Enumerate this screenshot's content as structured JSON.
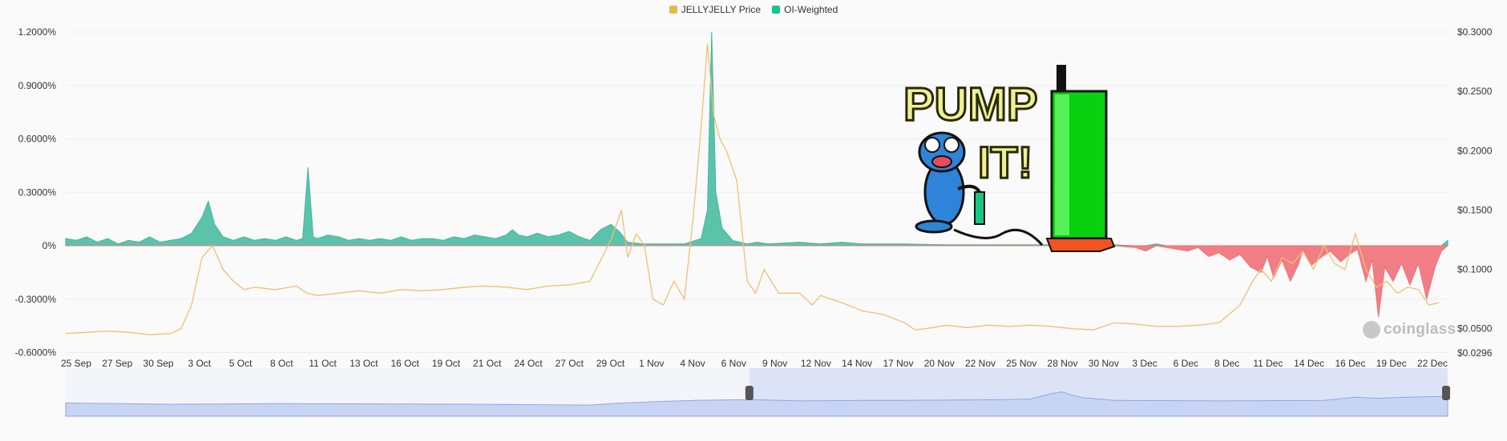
{
  "legend": [
    {
      "label": "JELLYJELLY Price",
      "color": "#e8b84a"
    },
    {
      "label": "OI-Weighted",
      "color": "#16c784"
    }
  ],
  "watermark": "coinglass",
  "sticker": {
    "line1": "PUMP",
    "line2": "IT!"
  },
  "chart_data": {
    "type": "area",
    "title": "",
    "left_axis": {
      "labels": [
        "1.2000%",
        "0.9000%",
        "0.6000%",
        "0.3000%",
        "0%",
        "-0.3000%",
        "-0.6000%"
      ],
      "min": -0.6,
      "max": 1.2
    },
    "right_axis": {
      "labels": [
        "$0.3000",
        "$0.2500",
        "$0.2000",
        "$0.1500",
        "$0.1000",
        "$0.0500",
        "$0.0296"
      ],
      "min": 0.0296,
      "max": 0.3
    },
    "x_labels": [
      "25 Sep",
      "27 Sep",
      "30 Sep",
      "3 Oct",
      "5 Oct",
      "8 Oct",
      "11 Oct",
      "13 Oct",
      "16 Oct",
      "19 Oct",
      "21 Oct",
      "24 Oct",
      "27 Oct",
      "29 Oct",
      "1 Nov",
      "4 Nov",
      "6 Nov",
      "9 Nov",
      "12 Nov",
      "14 Nov",
      "17 Nov",
      "20 Nov",
      "22 Nov",
      "25 Nov",
      "28 Nov",
      "30 Nov",
      "3 Dec",
      "6 Dec",
      "8 Dec",
      "11 Dec",
      "14 Dec",
      "16 Dec",
      "19 Dec",
      "22 Dec"
    ],
    "grid": true,
    "series": [
      {
        "name": "OI-Weighted",
        "axis": "left",
        "pos_color": "#3fb89c",
        "neg_color": "#f07078",
        "points": [
          [
            0,
            0.04
          ],
          [
            0.5,
            0.03
          ],
          [
            1.0,
            0.05
          ],
          [
            1.5,
            0.02
          ],
          [
            2.0,
            0.04
          ],
          [
            2.5,
            0.01
          ],
          [
            3.0,
            0.03
          ],
          [
            3.5,
            0.02
          ],
          [
            4.0,
            0.05
          ],
          [
            4.5,
            0.02
          ],
          [
            5.0,
            0.03
          ],
          [
            5.5,
            0.04
          ],
          [
            6.0,
            0.07
          ],
          [
            6.5,
            0.16
          ],
          [
            6.8,
            0.25
          ],
          [
            7.1,
            0.12
          ],
          [
            7.5,
            0.05
          ],
          [
            8.0,
            0.03
          ],
          [
            8.5,
            0.05
          ],
          [
            9.0,
            0.03
          ],
          [
            9.5,
            0.04
          ],
          [
            10.0,
            0.03
          ],
          [
            10.5,
            0.05
          ],
          [
            11.0,
            0.03
          ],
          [
            11.3,
            0.04
          ],
          [
            11.55,
            0.44
          ],
          [
            11.8,
            0.05
          ],
          [
            12.0,
            0.04
          ],
          [
            12.5,
            0.06
          ],
          [
            13.0,
            0.05
          ],
          [
            13.5,
            0.03
          ],
          [
            14.0,
            0.04
          ],
          [
            14.5,
            0.03
          ],
          [
            15.0,
            0.04
          ],
          [
            15.5,
            0.03
          ],
          [
            16.0,
            0.05
          ],
          [
            16.5,
            0.03
          ],
          [
            17.0,
            0.04
          ],
          [
            17.5,
            0.04
          ],
          [
            18.0,
            0.03
          ],
          [
            18.5,
            0.05
          ],
          [
            19.0,
            0.04
          ],
          [
            19.5,
            0.06
          ],
          [
            20.0,
            0.05
          ],
          [
            20.5,
            0.04
          ],
          [
            21.0,
            0.06
          ],
          [
            21.3,
            0.09
          ],
          [
            21.6,
            0.06
          ],
          [
            22.0,
            0.05
          ],
          [
            22.5,
            0.07
          ],
          [
            23.0,
            0.05
          ],
          [
            23.5,
            0.06
          ],
          [
            24.0,
            0.08
          ],
          [
            24.5,
            0.05
          ],
          [
            25.0,
            0.03
          ],
          [
            25.5,
            0.09
          ],
          [
            26.0,
            0.12
          ],
          [
            26.4,
            0.08
          ],
          [
            26.8,
            0.02
          ],
          [
            27.5,
            0.01
          ],
          [
            28.5,
            0.01
          ],
          [
            29.5,
            0.01
          ],
          [
            30.3,
            0.04
          ],
          [
            30.6,
            0.2
          ],
          [
            30.8,
            1.2
          ],
          [
            31.0,
            0.3
          ],
          [
            31.3,
            0.1
          ],
          [
            31.8,
            0.03
          ],
          [
            32.5,
            0.01
          ],
          [
            33.0,
            0.02
          ],
          [
            33.5,
            0.01
          ],
          [
            35.0,
            0.02
          ],
          [
            36.0,
            0.01
          ],
          [
            37.0,
            0.02
          ],
          [
            38.0,
            0.01
          ],
          [
            40.0,
            0.01
          ],
          [
            42.0,
            0.005
          ],
          [
            44.0,
            0.005
          ],
          [
            46.0,
            0.005
          ],
          [
            48.0,
            0.005
          ],
          [
            49.0,
            -0.005
          ],
          [
            50.0,
            0.005
          ],
          [
            51.0,
            -0.01
          ],
          [
            51.5,
            -0.03
          ],
          [
            52.0,
            0.01
          ],
          [
            52.5,
            -0.01
          ],
          [
            53.0,
            -0.02
          ],
          [
            53.5,
            -0.03
          ],
          [
            54.0,
            -0.01
          ],
          [
            54.5,
            -0.06
          ],
          [
            55.0,
            -0.04
          ],
          [
            55.5,
            -0.08
          ],
          [
            56.0,
            -0.05
          ],
          [
            56.5,
            -0.12
          ],
          [
            57.0,
            -0.15
          ],
          [
            57.3,
            -0.06
          ],
          [
            57.6,
            -0.18
          ],
          [
            58.0,
            -0.08
          ],
          [
            58.4,
            -0.2
          ],
          [
            58.8,
            -0.1
          ],
          [
            59.0,
            -0.02
          ],
          [
            59.4,
            -0.11
          ],
          [
            59.8,
            -0.07
          ],
          [
            60.3,
            -0.03
          ],
          [
            60.8,
            -0.09
          ],
          [
            61.2,
            -0.05
          ],
          [
            61.6,
            -0.02
          ],
          [
            62.0,
            -0.2
          ],
          [
            62.3,
            -0.08
          ],
          [
            62.6,
            -0.4
          ],
          [
            62.9,
            -0.12
          ],
          [
            63.3,
            -0.2
          ],
          [
            63.7,
            -0.1
          ],
          [
            64.1,
            -0.22
          ],
          [
            64.5,
            -0.1
          ],
          [
            64.9,
            -0.3
          ],
          [
            65.3,
            -0.12
          ],
          [
            65.6,
            -0.03
          ],
          [
            65.9,
            0.03
          ]
        ]
      },
      {
        "name": "JELLYJELLY Price",
        "axis": "right",
        "color": "#f0c070",
        "points": [
          [
            0,
            0.046
          ],
          [
            1.0,
            0.047
          ],
          [
            2.0,
            0.048
          ],
          [
            3.0,
            0.047
          ],
          [
            4.0,
            0.045
          ],
          [
            5.0,
            0.046
          ],
          [
            5.5,
            0.05
          ],
          [
            6.0,
            0.07
          ],
          [
            6.5,
            0.11
          ],
          [
            7.0,
            0.12
          ],
          [
            7.5,
            0.1
          ],
          [
            8.0,
            0.09
          ],
          [
            8.5,
            0.083
          ],
          [
            9.0,
            0.085
          ],
          [
            10.0,
            0.083
          ],
          [
            11.0,
            0.086
          ],
          [
            11.5,
            0.08
          ],
          [
            12.0,
            0.078
          ],
          [
            13.0,
            0.08
          ],
          [
            14.0,
            0.082
          ],
          [
            15.0,
            0.08
          ],
          [
            16.0,
            0.083
          ],
          [
            17.0,
            0.082
          ],
          [
            18.0,
            0.083
          ],
          [
            19.0,
            0.085
          ],
          [
            20.0,
            0.086
          ],
          [
            21.0,
            0.085
          ],
          [
            22.0,
            0.083
          ],
          [
            23.0,
            0.086
          ],
          [
            24.0,
            0.087
          ],
          [
            25.0,
            0.09
          ],
          [
            26.0,
            0.125
          ],
          [
            26.5,
            0.15
          ],
          [
            26.8,
            0.11
          ],
          [
            27.2,
            0.13
          ],
          [
            27.6,
            0.12
          ],
          [
            28.0,
            0.075
          ],
          [
            28.5,
            0.07
          ],
          [
            29.0,
            0.09
          ],
          [
            29.5,
            0.075
          ],
          [
            29.9,
            0.14
          ],
          [
            30.3,
            0.22
          ],
          [
            30.6,
            0.29
          ],
          [
            30.9,
            0.23
          ],
          [
            31.2,
            0.21
          ],
          [
            31.5,
            0.2
          ],
          [
            32.0,
            0.175
          ],
          [
            32.5,
            0.09
          ],
          [
            32.9,
            0.08
          ],
          [
            33.3,
            0.1
          ],
          [
            34.0,
            0.08
          ],
          [
            35.0,
            0.08
          ],
          [
            35.6,
            0.07
          ],
          [
            36.0,
            0.078
          ],
          [
            37.0,
            0.072
          ],
          [
            38.0,
            0.065
          ],
          [
            39.0,
            0.062
          ],
          [
            40.0,
            0.055
          ],
          [
            40.5,
            0.049
          ],
          [
            41.0,
            0.05
          ],
          [
            42.0,
            0.053
          ],
          [
            43.0,
            0.051
          ],
          [
            44.0,
            0.053
          ],
          [
            45.0,
            0.052
          ],
          [
            46.0,
            0.053
          ],
          [
            47.0,
            0.052
          ],
          [
            48.0,
            0.05
          ],
          [
            49.0,
            0.049
          ],
          [
            50.0,
            0.055
          ],
          [
            51.0,
            0.054
          ],
          [
            52.0,
            0.052
          ],
          [
            53.0,
            0.052
          ],
          [
            54.0,
            0.053
          ],
          [
            55.0,
            0.055
          ],
          [
            56.0,
            0.07
          ],
          [
            56.6,
            0.09
          ],
          [
            57.0,
            0.1
          ],
          [
            57.5,
            0.09
          ],
          [
            58.0,
            0.11
          ],
          [
            58.5,
            0.105
          ],
          [
            59.0,
            0.115
          ],
          [
            59.5,
            0.1
          ],
          [
            60.0,
            0.12
          ],
          [
            60.5,
            0.105
          ],
          [
            61.0,
            0.1
          ],
          [
            61.5,
            0.13
          ],
          [
            62.0,
            0.1
          ],
          [
            62.5,
            0.085
          ],
          [
            63.0,
            0.09
          ],
          [
            63.5,
            0.08
          ],
          [
            64.0,
            0.085
          ],
          [
            64.5,
            0.083
          ],
          [
            65.0,
            0.07
          ],
          [
            65.5,
            0.072
          ]
        ]
      }
    ],
    "navigator": {
      "selected_range_days": [
        32.6,
        65.9
      ],
      "points": [
        [
          0,
          0.5
        ],
        [
          5,
          0.45
        ],
        [
          10,
          0.48
        ],
        [
          20,
          0.45
        ],
        [
          25,
          0.42
        ],
        [
          26,
          0.48
        ],
        [
          28,
          0.55
        ],
        [
          30,
          0.6
        ],
        [
          32,
          0.62
        ],
        [
          33,
          0.62
        ],
        [
          35,
          0.58
        ],
        [
          38,
          0.6
        ],
        [
          40,
          0.6
        ],
        [
          44,
          0.62
        ],
        [
          46,
          0.65
        ],
        [
          47,
          0.85
        ],
        [
          47.5,
          0.92
        ],
        [
          48,
          0.8
        ],
        [
          48.5,
          0.7
        ],
        [
          50,
          0.6
        ],
        [
          55,
          0.58
        ],
        [
          60,
          0.6
        ],
        [
          61.5,
          0.72
        ],
        [
          62.5,
          0.68
        ],
        [
          64,
          0.72
        ],
        [
          65.9,
          0.75
        ]
      ]
    }
  }
}
